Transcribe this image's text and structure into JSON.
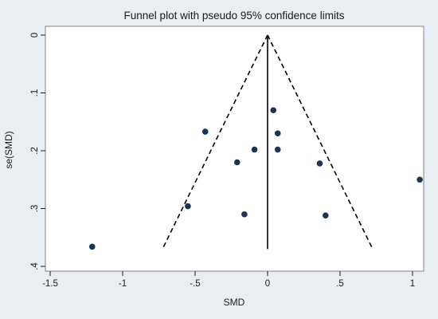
{
  "chart_data": {
    "type": "scatter",
    "title": "Funnel plot with pseudo 95% confidence limits",
    "xlabel": "SMD",
    "ylabel": "se(SMD)",
    "xlim": [
      -1.5,
      1.0
    ],
    "ylim": [
      0,
      0.4
    ],
    "y_reversed": true,
    "grid": false,
    "legend": "none",
    "x_ticks": [
      {
        "value": -1.5,
        "label": "-1.5"
      },
      {
        "value": -1.0,
        "label": "-1"
      },
      {
        "value": -0.5,
        "label": "-.5"
      },
      {
        "value": 0.0,
        "label": "0"
      },
      {
        "value": 0.5,
        "label": ".5"
      },
      {
        "value": 1.0,
        "label": "1"
      }
    ],
    "y_ticks": [
      {
        "value": 0.0,
        "label": "0"
      },
      {
        "value": 0.1,
        "label": ".1"
      },
      {
        "value": 0.2,
        "label": ".2"
      },
      {
        "value": 0.3,
        "label": ".3"
      },
      {
        "value": 0.4,
        "label": ".4"
      }
    ],
    "points": [
      {
        "x": 0.04,
        "y": 0.13
      },
      {
        "x": 0.07,
        "y": 0.17
      },
      {
        "x": -0.43,
        "y": 0.167
      },
      {
        "x": -0.09,
        "y": 0.198
      },
      {
        "x": 0.07,
        "y": 0.198
      },
      {
        "x": -0.21,
        "y": 0.22
      },
      {
        "x": 0.36,
        "y": 0.222
      },
      {
        "x": 1.05,
        "y": 0.25
      },
      {
        "x": -0.55,
        "y": 0.296
      },
      {
        "x": -0.16,
        "y": 0.31
      },
      {
        "x": 0.4,
        "y": 0.312
      },
      {
        "x": -1.21,
        "y": 0.366
      }
    ],
    "pooled_estimate": 0.0,
    "funnel_se_max": 0.37,
    "colors": {
      "background": "#e8eef2",
      "plot_area": "#ffffff",
      "point": "#1a3552",
      "line": "#000000"
    }
  }
}
